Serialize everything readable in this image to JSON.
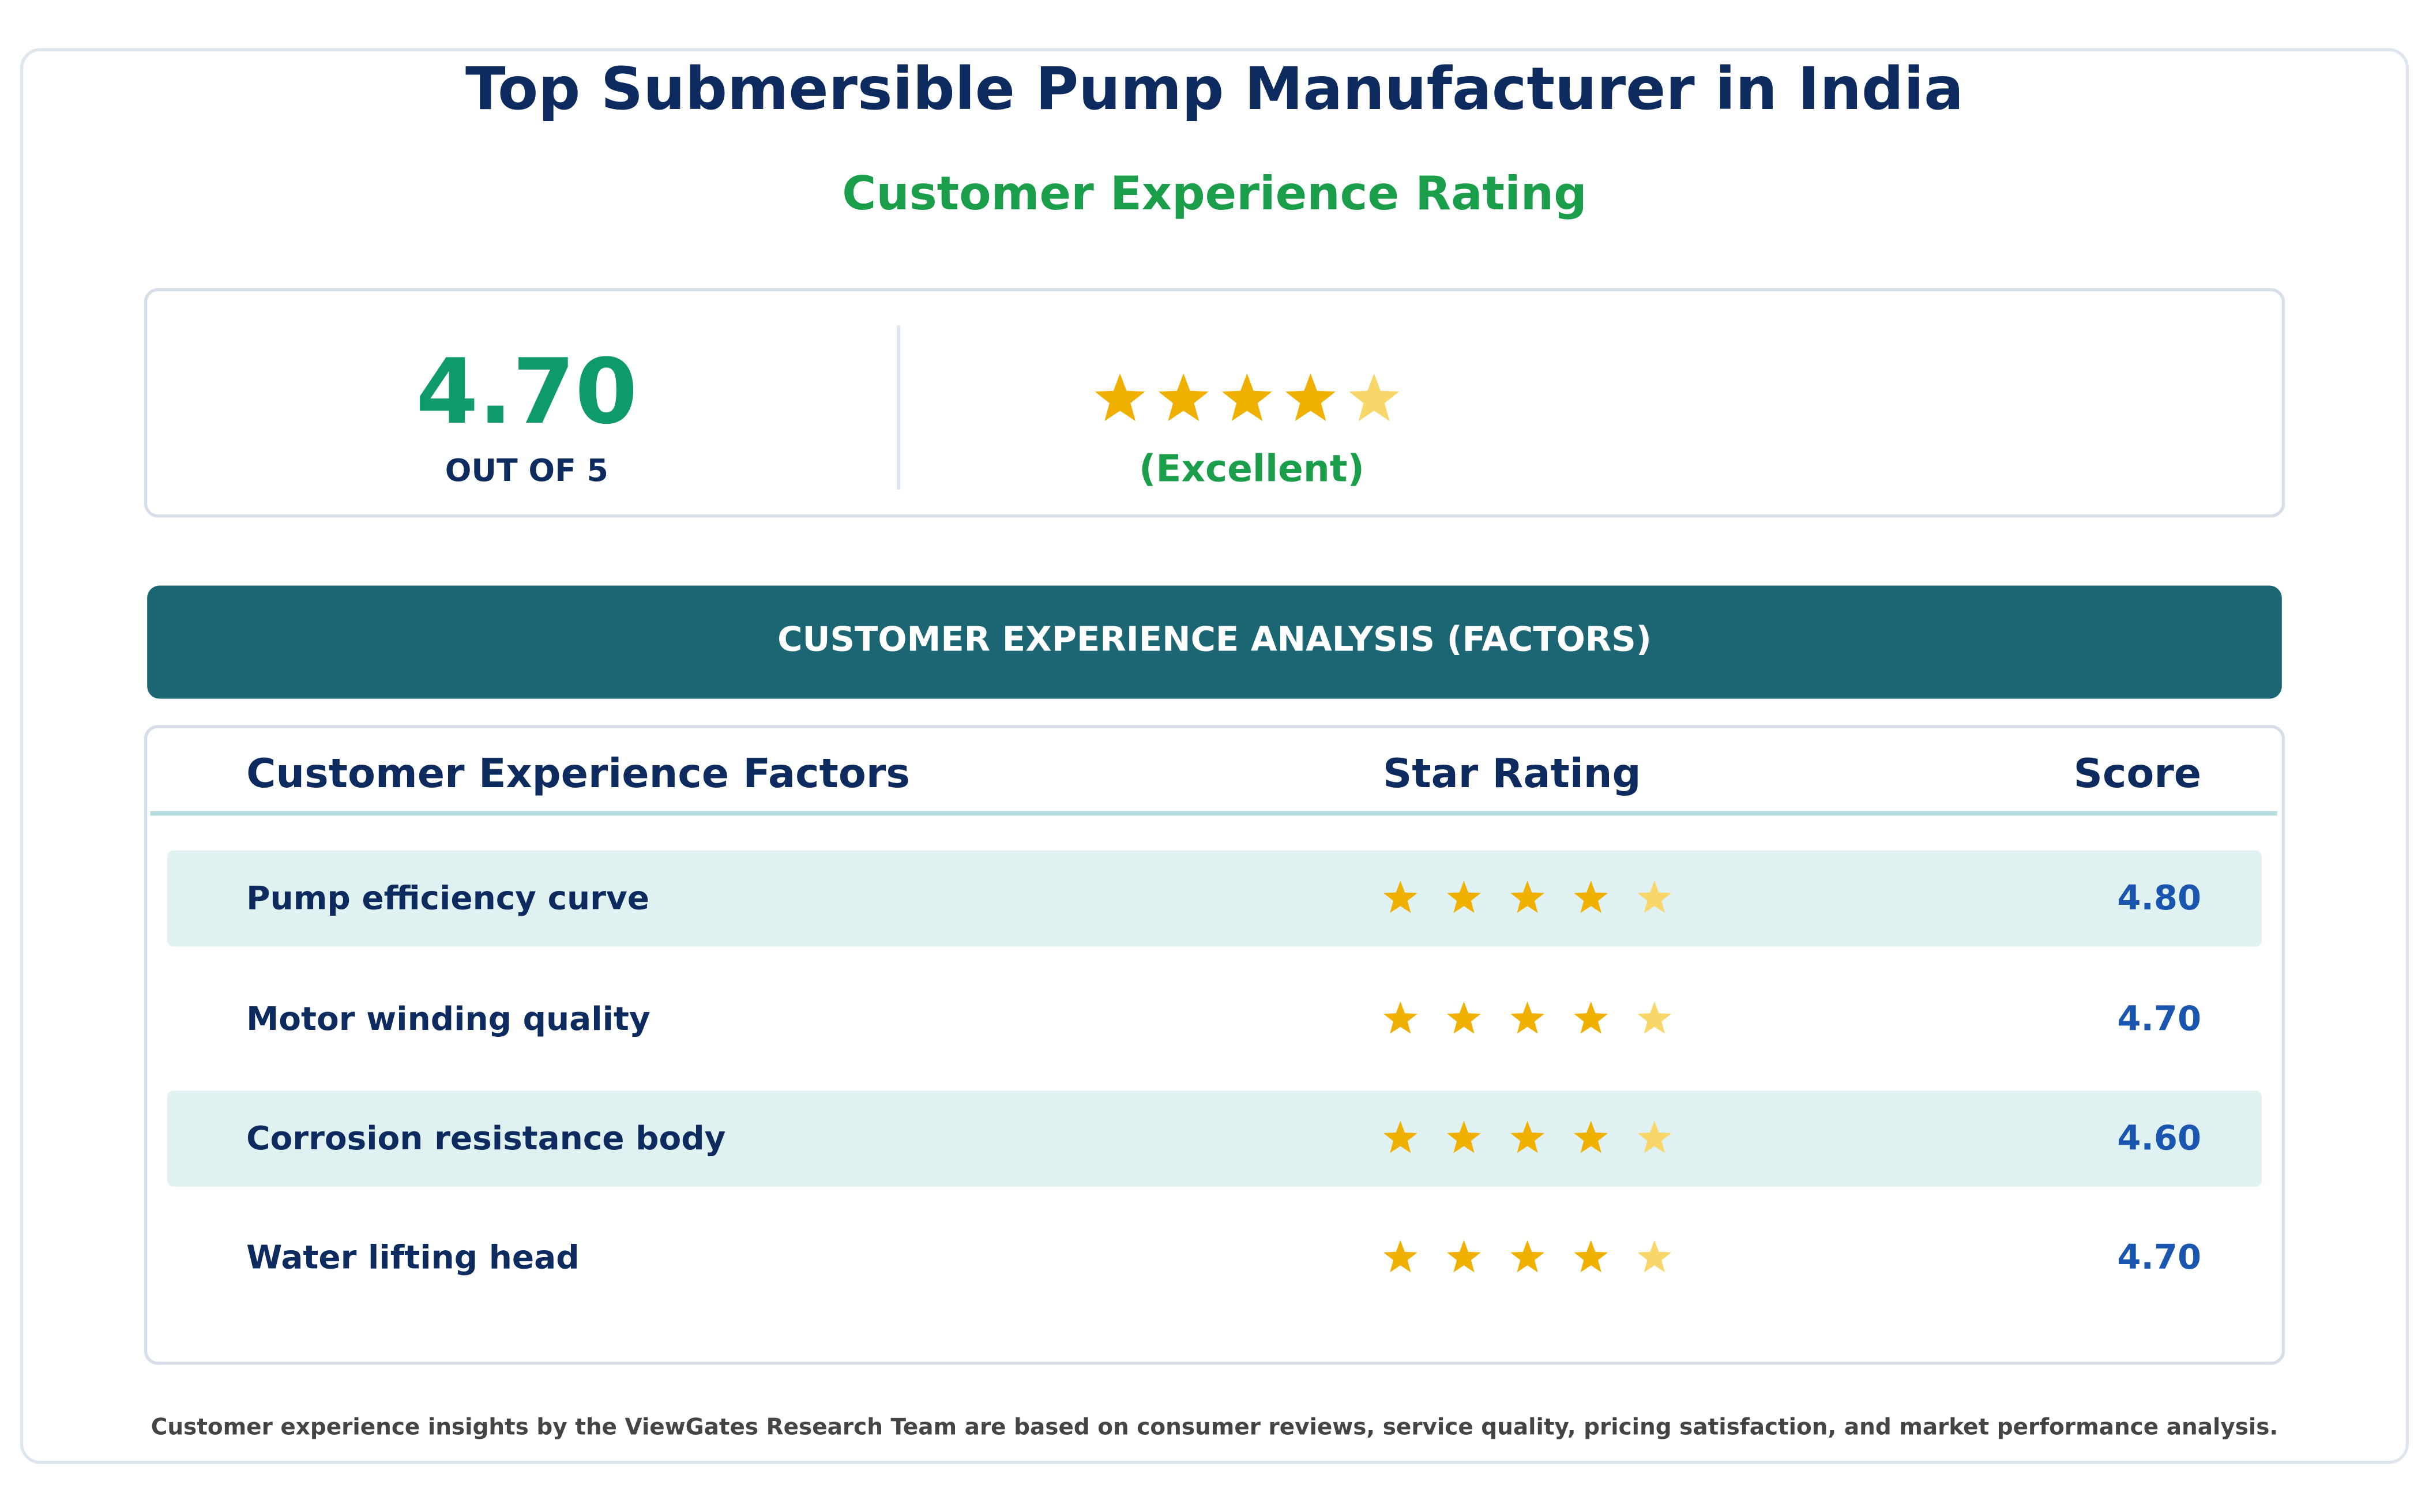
{
  "header": {
    "title": "Top Submersible Pump Manufacturer in India",
    "subtitle": "Customer Experience Rating"
  },
  "summary": {
    "score": "4.70",
    "out_of": "OUT OF 5",
    "label": "(Excellent)"
  },
  "section_title": "CUSTOMER EXPERIENCE ANALYSIS (FACTORS)",
  "table": {
    "headers": [
      "Customer Experience Factors",
      "Star Rating",
      "Score"
    ],
    "rows": [
      [
        "Pump efficiency curve",
        "4.80"
      ],
      [
        "Motor winding quality",
        "4.70"
      ],
      [
        "Corrosion resistance body",
        "4.60"
      ],
      [
        "Water lifting head",
        "4.70"
      ]
    ]
  },
  "footer": "Customer experience insights by the ViewGates Research Team are based on consumer reviews, service quality, pricing satisfaction, and market performance analysis."
}
